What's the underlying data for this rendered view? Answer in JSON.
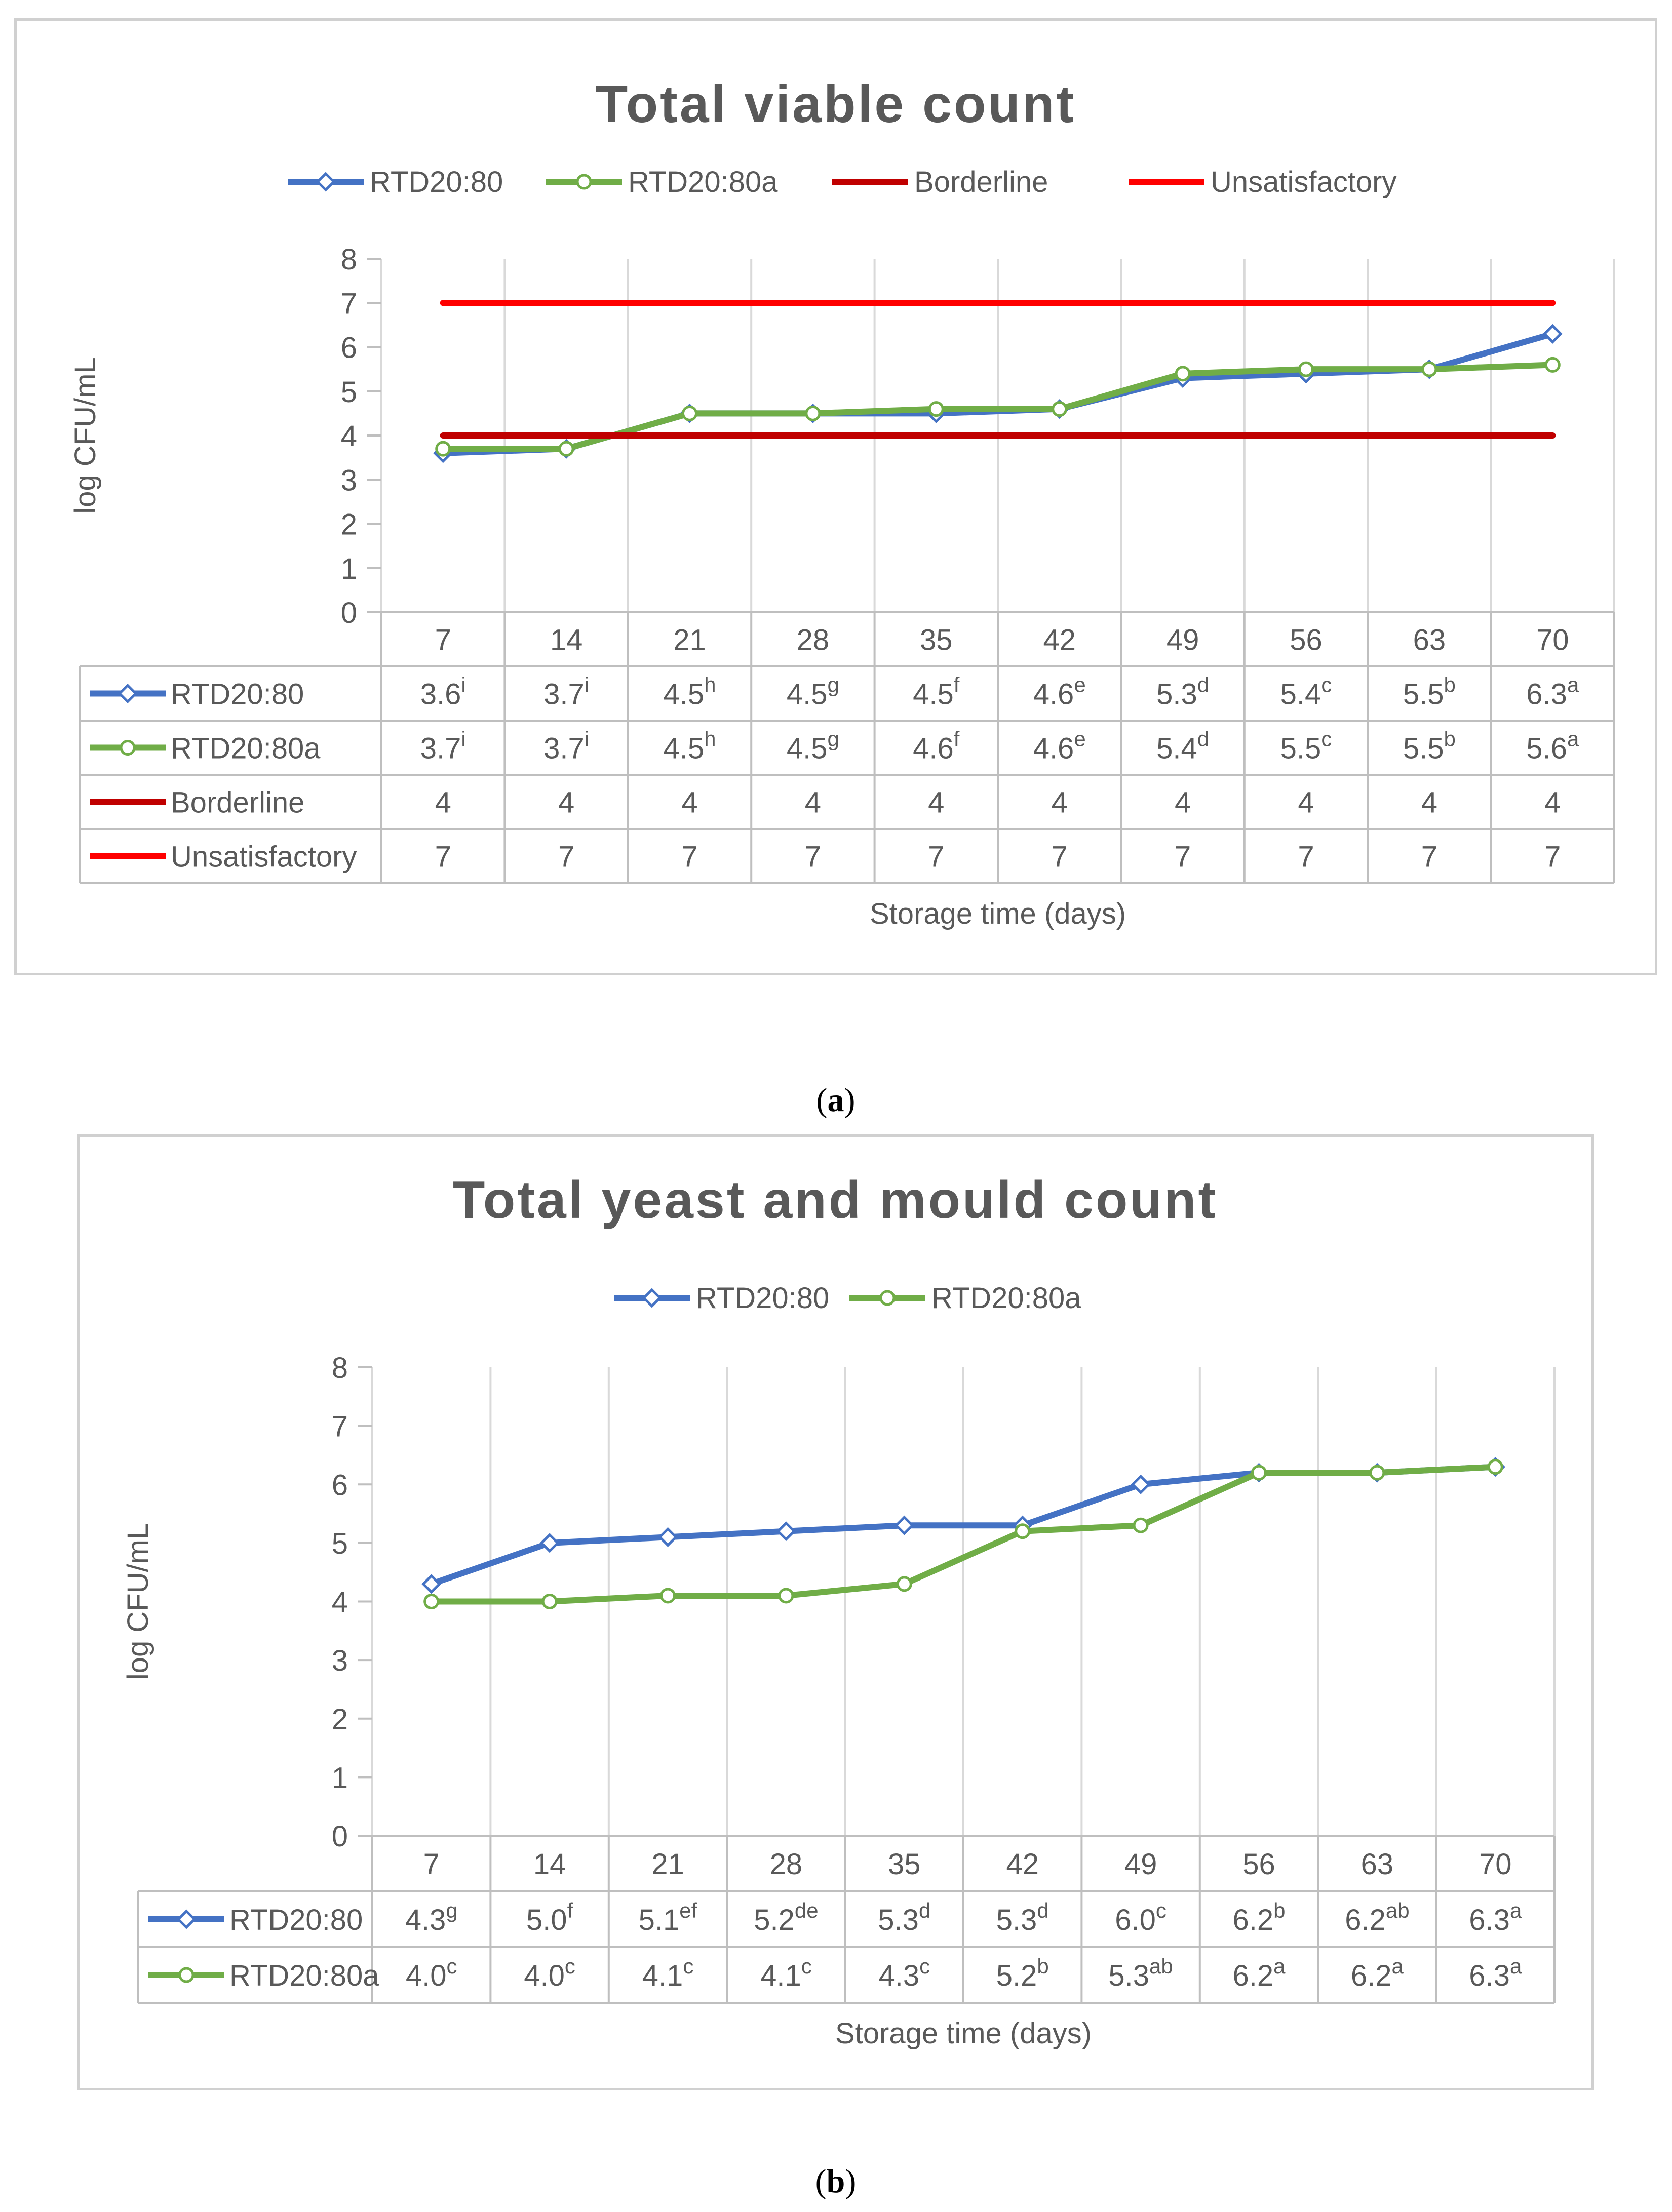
{
  "figures": [
    {
      "id": "a",
      "caption_label": "a",
      "chart_data": {
        "type": "line",
        "title": "Total viable count",
        "xlabel": "Storage time (days)",
        "ylabel": "log CFU/mL",
        "ylim": [
          0,
          8
        ],
        "yticks": [
          "0",
          "1",
          "2",
          "3",
          "4",
          "5",
          "6",
          "7",
          "8"
        ],
        "categories": [
          "7",
          "14",
          "21",
          "28",
          "35",
          "42",
          "49",
          "56",
          "63",
          "70"
        ],
        "series": [
          {
            "name": "RTD20:80",
            "color": "#4472C4",
            "marker": "diamond",
            "values": [
              3.6,
              3.7,
              4.5,
              4.5,
              4.5,
              4.6,
              5.3,
              5.4,
              5.5,
              6.3
            ],
            "labels": [
              "3.6",
              "3.7",
              "4.5",
              "4.5",
              "4.5",
              "4.6",
              "5.3",
              "5.4",
              "5.5",
              "6.3"
            ],
            "superscripts": [
              "i",
              "i",
              "h",
              "g",
              "f",
              "e",
              "d",
              "c",
              "b",
              "a"
            ]
          },
          {
            "name": "RTD20:80a",
            "color": "#70AD47",
            "marker": "circle",
            "values": [
              3.7,
              3.7,
              4.5,
              4.5,
              4.6,
              4.6,
              5.4,
              5.5,
              5.5,
              5.6
            ],
            "labels": [
              "3.7",
              "3.7",
              "4.5",
              "4.5",
              "4.6",
              "4.6",
              "5.4",
              "5.5",
              "5.5",
              "5.6"
            ],
            "superscripts": [
              "i",
              "i",
              "h",
              "g",
              "f",
              "e",
              "d",
              "c",
              "b",
              "a"
            ]
          },
          {
            "name": "Borderline",
            "color": "#C00000",
            "marker": "none",
            "values": [
              4,
              4,
              4,
              4,
              4,
              4,
              4,
              4,
              4,
              4
            ],
            "labels": [
              "4",
              "4",
              "4",
              "4",
              "4",
              "4",
              "4",
              "4",
              "4",
              "4"
            ],
            "superscripts": [
              "",
              "",
              "",
              "",
              "",
              "",
              "",
              "",
              "",
              ""
            ]
          },
          {
            "name": "Unsatisfactory",
            "color": "#FF0000",
            "marker": "none",
            "values": [
              7,
              7,
              7,
              7,
              7,
              7,
              7,
              7,
              7,
              7
            ],
            "labels": [
              "7",
              "7",
              "7",
              "7",
              "7",
              "7",
              "7",
              "7",
              "7",
              "7"
            ],
            "superscripts": [
              "",
              "",
              "",
              "",
              "",
              "",
              "",
              "",
              "",
              ""
            ]
          }
        ]
      }
    },
    {
      "id": "b",
      "caption_label": "b",
      "chart_data": {
        "type": "line",
        "title": "Total yeast and mould count",
        "xlabel": "Storage time (days)",
        "ylabel": "log CFU/mL",
        "ylim": [
          0,
          8
        ],
        "yticks": [
          "0",
          "1",
          "2",
          "3",
          "4",
          "5",
          "6",
          "7",
          "8"
        ],
        "categories": [
          "7",
          "14",
          "21",
          "28",
          "35",
          "42",
          "49",
          "56",
          "63",
          "70"
        ],
        "series": [
          {
            "name": "RTD20:80",
            "color": "#4472C4",
            "marker": "diamond",
            "values": [
              4.3,
              5.0,
              5.1,
              5.2,
              5.3,
              5.3,
              6.0,
              6.2,
              6.2,
              6.3
            ],
            "labels": [
              "4.3",
              "5.0",
              "5.1",
              "5.2",
              "5.3",
              "5.3",
              "6.0",
              "6.2",
              "6.2",
              "6.3"
            ],
            "superscripts": [
              "g",
              "f",
              "ef",
              "de",
              "d",
              "d",
              "c",
              "b",
              "ab",
              "a"
            ]
          },
          {
            "name": "RTD20:80a",
            "color": "#70AD47",
            "marker": "circle",
            "values": [
              4.0,
              4.0,
              4.1,
              4.1,
              4.3,
              5.2,
              5.3,
              6.2,
              6.2,
              6.3
            ],
            "labels": [
              "4.0",
              "4.0",
              "4.1",
              "4.1",
              "4.3",
              "5.2",
              "5.3",
              "6.2",
              "6.2",
              "6.3"
            ],
            "superscripts": [
              "c",
              "c",
              "c",
              "c",
              "c",
              "b",
              "ab",
              "a",
              "a",
              "a"
            ]
          }
        ]
      }
    }
  ]
}
